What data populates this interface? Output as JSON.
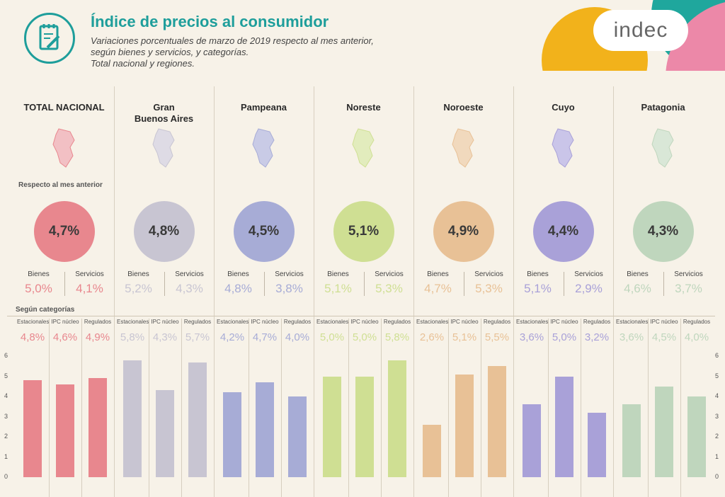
{
  "header": {
    "title": "Índice de precios al consumidor",
    "subtitle_lines": [
      "Variaciones porcentuales de marzo de 2019 respecto al mes anterior,",
      "según bienes y servicios, y categorías.",
      "Total nacional y regiones."
    ],
    "logo": "indec"
  },
  "labels": {
    "respecto": "Respecto al mes anterior",
    "bienes": "Bienes",
    "servicios": "Servicios",
    "categorias": "Según categorías",
    "cat_names": [
      "Estacionales",
      "IPC núcleo",
      "Regulados"
    ]
  },
  "axis_ticks": [
    "0",
    "1",
    "2",
    "3",
    "4",
    "5",
    "6"
  ],
  "regions": [
    {
      "name": "TOTAL NACIONAL",
      "total": "4,7%",
      "bienes": "5,0%",
      "servicios": "4,1%",
      "cats": [
        "4,8%",
        "4,6%",
        "4,9%"
      ],
      "color": "#e8878e",
      "light": "#f2c0c4"
    },
    {
      "name": "Gran\nBuenos Aires",
      "total": "4,8%",
      "bienes": "5,2%",
      "servicios": "4,3%",
      "cats": [
        "5,8%",
        "4,3%",
        "5,7%"
      ],
      "color": "#c8c5d2",
      "light": "#dedbe5"
    },
    {
      "name": "Pampeana",
      "total": "4,5%",
      "bienes": "4,8%",
      "servicios": "3,8%",
      "cats": [
        "4,2%",
        "4,7%",
        "4,0%"
      ],
      "color": "#a7acd6",
      "light": "#c9cbe6"
    },
    {
      "name": "Noreste",
      "total": "5,1%",
      "bienes": "5,1%",
      "servicios": "5,3%",
      "cats": [
        "5,0%",
        "5,0%",
        "5,8%"
      ],
      "color": "#cfdf93",
      "light": "#e2ecbd"
    },
    {
      "name": "Noroeste",
      "total": "4,9%",
      "bienes": "4,7%",
      "servicios": "5,3%",
      "cats": [
        "2,6%",
        "5,1%",
        "5,5%"
      ],
      "color": "#e8c196",
      "light": "#f1d9bd"
    },
    {
      "name": "Cuyo",
      "total": "4,4%",
      "bienes": "5,1%",
      "servicios": "2,9%",
      "cats": [
        "3,6%",
        "5,0%",
        "3,2%"
      ],
      "color": "#a9a1d8",
      "light": "#cac5e9"
    },
    {
      "name": "Patagonia",
      "total": "4,3%",
      "bienes": "4,6%",
      "servicios": "3,7%",
      "cats": [
        "3,6%",
        "4,5%",
        "4,0%"
      ],
      "color": "#bfd6bd",
      "light": "#d9e7d7"
    }
  ],
  "chart_data": {
    "type": "bar",
    "categories": [
      "Estacionales",
      "IPC núcleo",
      "Regulados"
    ],
    "ylim": [
      0,
      6
    ],
    "series": [
      {
        "name": "TOTAL NACIONAL",
        "values": [
          4.8,
          4.6,
          4.9
        ]
      },
      {
        "name": "Gran Buenos Aires",
        "values": [
          5.8,
          4.3,
          5.7
        ]
      },
      {
        "name": "Pampeana",
        "values": [
          4.2,
          4.7,
          4.0
        ]
      },
      {
        "name": "Noreste",
        "values": [
          5.0,
          5.0,
          5.8
        ]
      },
      {
        "name": "Noroeste",
        "values": [
          2.6,
          5.1,
          5.5
        ]
      },
      {
        "name": "Cuyo",
        "values": [
          3.6,
          5.0,
          3.2
        ]
      },
      {
        "name": "Patagonia",
        "values": [
          3.6,
          4.5,
          4.0
        ]
      }
    ]
  }
}
